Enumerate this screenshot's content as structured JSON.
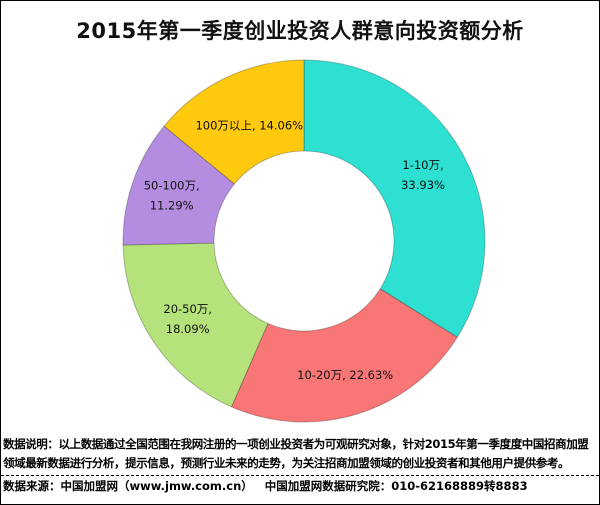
{
  "chart_data": {
    "type": "pie",
    "donut": true,
    "title": "2015年第一季度创业投资人群意向投资额分析",
    "start_angle": "12 o'clock, clockwise",
    "slices": [
      {
        "category": "1-10万",
        "value": 33.93,
        "label": [
          "1-10万,",
          "33.93%"
        ],
        "color": "#2EE0D2"
      },
      {
        "category": "10-20万",
        "value": 22.63,
        "label": [
          "10-20万, 22.63%"
        ],
        "color": "#F87676"
      },
      {
        "category": "20-50万",
        "value": 18.09,
        "label": [
          "20-50万,",
          "18.09%"
        ],
        "color": "#B5E27A"
      },
      {
        "category": "50-100万",
        "value": 11.29,
        "label": [
          "50-100万,",
          "11.29%"
        ],
        "color": "#B58DE0"
      },
      {
        "category": "100万以上",
        "value": 14.06,
        "label": [
          "100万以上, 14.06%"
        ],
        "color": "#FFC90E"
      }
    ]
  },
  "note": "数据说明：以上数据通过全国范围在我网注册的一项创业投资者为可观研究对象，针对2015年第一季度度中国招商加盟领域最新数据进行分析，提示信息，预测行业未来的走势，为关注招商加盟领域的创业投资者和其他用户提供参考。",
  "source": "数据来源：中国加盟网（www.jmw.com.cn）   中国加盟网数据研究院：010-62168889转8883"
}
